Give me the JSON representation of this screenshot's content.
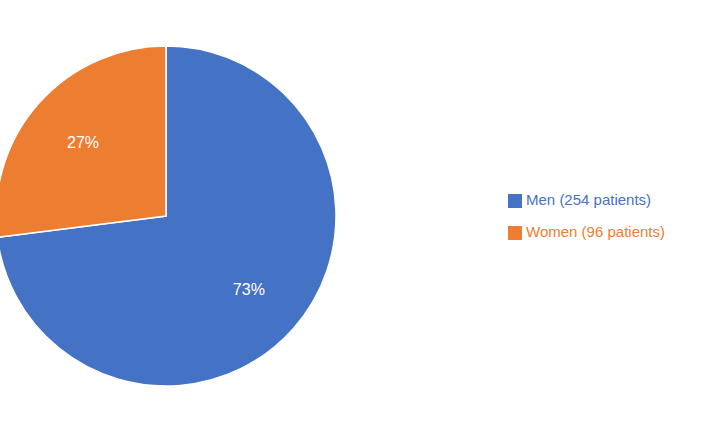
{
  "chart_data": {
    "type": "pie",
    "categories": [
      "Men (254 patients)",
      "Women (96 patients)"
    ],
    "values": [
      73,
      27
    ],
    "value_labels": [
      "73%",
      "27%"
    ],
    "colors": [
      "#4472C4",
      "#ED7D31"
    ],
    "data_labels": true,
    "legend": "right"
  }
}
